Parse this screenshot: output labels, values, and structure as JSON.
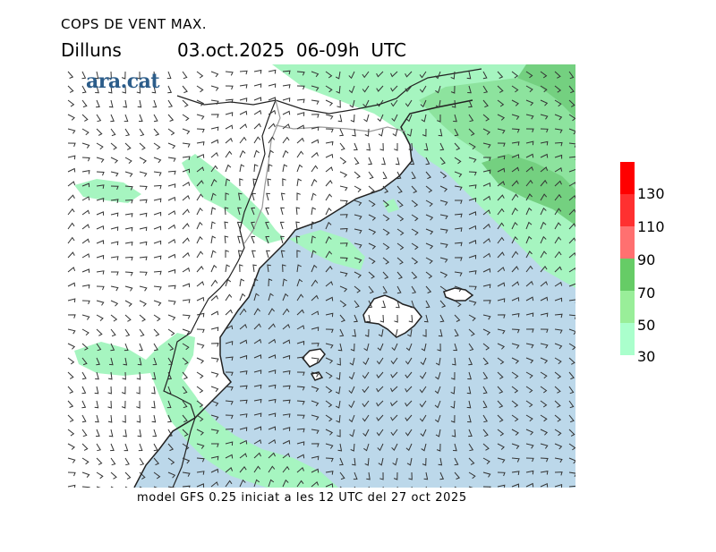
{
  "header": {
    "title": "COPS DE VENT MAX.",
    "day": "Dilluns",
    "date": "03.oct.2025  06-09h  UTC"
  },
  "logo": {
    "text": "ara.cat"
  },
  "footer": {
    "text": "model GFS 0.25 iniciat a les 12 UTC del 27 oct 2025"
  },
  "legend": {
    "colors": [
      "#ff0000",
      "#ff3030",
      "#ff7070",
      "#66cc66",
      "#99ee99",
      "#aaffcc"
    ],
    "labels": [
      "130",
      "110",
      "90",
      "70",
      "50",
      "30"
    ]
  },
  "map": {
    "sea_color": "#bcd8ea",
    "land_color": "#ffffff",
    "gust_30_50_color": "#a6f5c0",
    "gust_50_70_color": "#8de39e",
    "gust_70_90_color": "#74d080"
  }
}
